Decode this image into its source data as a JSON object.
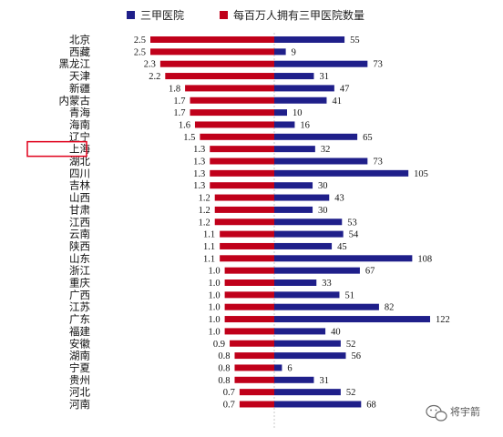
{
  "chart_data": {
    "type": "bar",
    "orientation": "horizontal-diverging",
    "legend": {
      "placement": "top",
      "items": [
        {
          "label": "三甲医院",
          "color": "#1f1f8a"
        },
        {
          "label": "每百万人拥有三甲医院数量",
          "color": "#c0001a"
        }
      ]
    },
    "categories": [
      "北京",
      "西藏",
      "黑龙江",
      "天津",
      "新疆",
      "内蒙古",
      "青海",
      "海南",
      "辽宁",
      "上海",
      "湖北",
      "四川",
      "吉林",
      "山西",
      "甘肃",
      "江西",
      "云南",
      "陕西",
      "山东",
      "浙江",
      "重庆",
      "广西",
      "江苏",
      "广东",
      "福建",
      "安徽",
      "湖南",
      "宁夏",
      "贵州",
      "河北",
      "河南"
    ],
    "series": [
      {
        "name": "三甲医院",
        "side": "right",
        "color": "#1f1f8a",
        "values": [
          55,
          9,
          73,
          31,
          47,
          41,
          10,
          16,
          65,
          32,
          73,
          105,
          30,
          43,
          30,
          53,
          54,
          45,
          108,
          67,
          33,
          51,
          82,
          122,
          40,
          52,
          56,
          6,
          31,
          52,
          68
        ]
      },
      {
        "name": "每百万人拥有三甲医院数量",
        "side": "left",
        "color": "#c0001a",
        "values": [
          2.5,
          2.5,
          2.3,
          2.2,
          1.8,
          1.7,
          1.7,
          1.6,
          1.5,
          1.3,
          1.3,
          1.3,
          1.3,
          1.2,
          1.2,
          1.2,
          1.1,
          1.1,
          1.1,
          1.0,
          1.0,
          1.0,
          1.0,
          1.0,
          1.0,
          0.9,
          0.8,
          0.8,
          0.8,
          0.7,
          0.7
        ]
      }
    ],
    "highlighted_category": "上海",
    "grid": false
  },
  "watermark": {
    "text": "将宇箭",
    "icon": "wechat-icon"
  }
}
